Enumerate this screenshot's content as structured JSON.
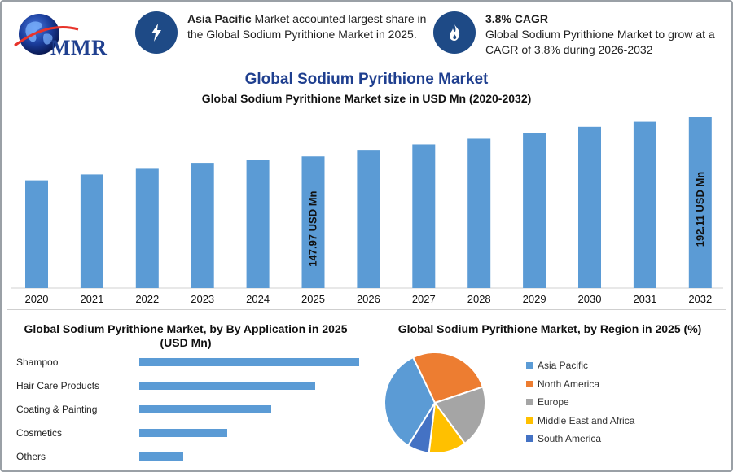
{
  "logo": {
    "text": "MMR"
  },
  "info": [
    {
      "bold": "Asia Pacific",
      "text": " Market accounted largest share in the Global Sodium Pyrithione Market in 2025.",
      "icon": "lightning-icon"
    },
    {
      "bold": "3.8% CAGR",
      "text": "Global Sodium Pyrithione Market to grow at a CAGR of 3.8% during 2026-2032",
      "icon": "flame-icon"
    }
  ],
  "colors": {
    "accent": "#1e4a86",
    "bar": "#5b9bd5",
    "title": "#1f3f8f"
  },
  "chart_data": [
    {
      "type": "bar",
      "title": "Global Sodium Pyrithione Market",
      "subtitle": "Global Sodium Pyrithione Market size in USD Mn (2020-2032)",
      "categories": [
        "2020",
        "2021",
        "2022",
        "2023",
        "2024",
        "2025",
        "2026",
        "2027",
        "2028",
        "2029",
        "2030",
        "2031",
        "2032"
      ],
      "values": [
        121.1,
        127.7,
        134.1,
        140.8,
        144.5,
        147.97,
        155.4,
        161.5,
        167.9,
        174.7,
        181.3,
        187.0,
        192.11
      ],
      "data_labels": {
        "2025": "147.97 USD Mn",
        "2032": "192.11 USD Mn"
      },
      "ylim": [
        0,
        200
      ],
      "grid": false
    },
    {
      "type": "bar",
      "orientation": "horizontal",
      "title": "Global Sodium Pyrithione Market, by By Application in 2025 (USD Mn)",
      "categories": [
        "Shampoo",
        "Hair Care Products",
        "Coating & Painting",
        "Cosmetics",
        "Others"
      ],
      "values": [
        50,
        40,
        30,
        20,
        10
      ],
      "grid": false
    },
    {
      "type": "pie",
      "title": "Global Sodium Pyrithione Market, by Region in 2025 (%)",
      "categories": [
        "Asia Pacific",
        "North America",
        "Europe",
        "Middle East and Africa",
        "South America"
      ],
      "values": [
        34,
        27,
        20,
        12,
        7
      ],
      "colors": [
        "#5b9bd5",
        "#ed7d31",
        "#a5a5a5",
        "#ffc000",
        "#4472c4"
      ],
      "legend": "right"
    }
  ]
}
